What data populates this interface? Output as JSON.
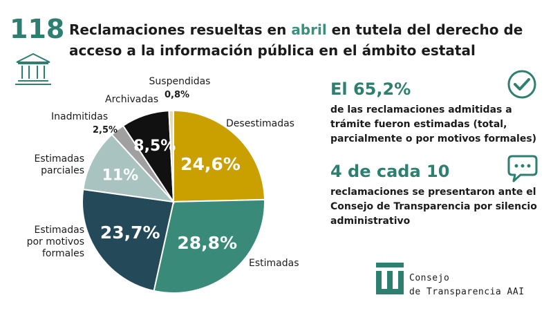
{
  "header": {
    "count": "118",
    "title_before": "Reclamaciones resueltas en ",
    "title_highlight": "abril",
    "title_after": " en tutela del derecho de acceso a la información pública en el ámbito estatal"
  },
  "chart_data": {
    "type": "pie",
    "slices": [
      {
        "category": "Desestimadas",
        "value": 24.6,
        "label": "24,6%",
        "color": "#c9a000"
      },
      {
        "category": "Estimadas",
        "value": 28.8,
        "label": "28,8%",
        "color": "#3a8a7a"
      },
      {
        "category": "Estimadas por motivos formales",
        "value": 23.7,
        "label": "23,7%",
        "color": "#244a5a"
      },
      {
        "category": "Estimadas parciales",
        "value": 11,
        "label": "11%",
        "color": "#a9c3c0"
      },
      {
        "category": "Inadmitidas",
        "value": 2.5,
        "label": "2,5%",
        "color": "#a0a0a0"
      },
      {
        "category": "Archivadas",
        "value": 8.5,
        "label": "8,5%",
        "color": "#111111"
      },
      {
        "category": "Suspendidas",
        "value": 0.8,
        "label": "0,8%",
        "color": "#e7d9b5"
      }
    ],
    "labels": {
      "suspendidas": "Suspendidas",
      "archivadas": "Archivadas",
      "inadmitidas": "Inadmitidas",
      "estimadas_parciales_1": "Estimadas",
      "estimadas_parciales_2": "parciales",
      "formales_1": "Estimadas",
      "formales_2": "por motivos",
      "formales_3": "formales",
      "desestimadas": "Desestimadas",
      "estimadas": "Estimadas"
    }
  },
  "stats": {
    "stat1_value": "El 65,2%",
    "stat1_desc": "de las reclamaciones admitidas a trámite fueron estimadas (total, parcialmente o por motivos formales)",
    "stat2_value": "4 de cada 10",
    "stat2_desc": "reclamaciones se presentaron ante el Consejo de Transparencia por silencio administrativo"
  },
  "brand": {
    "line1": "Consejo",
    "line2": "de Transparencia AAI"
  },
  "icons": {
    "bank": "bank-building-icon",
    "check": "check-circle-icon",
    "chat": "speech-bubble-icon",
    "logo": "ct-logo-icon"
  },
  "colors": {
    "accent": "#2e7f6f",
    "highlight": "#3a8f7d"
  }
}
